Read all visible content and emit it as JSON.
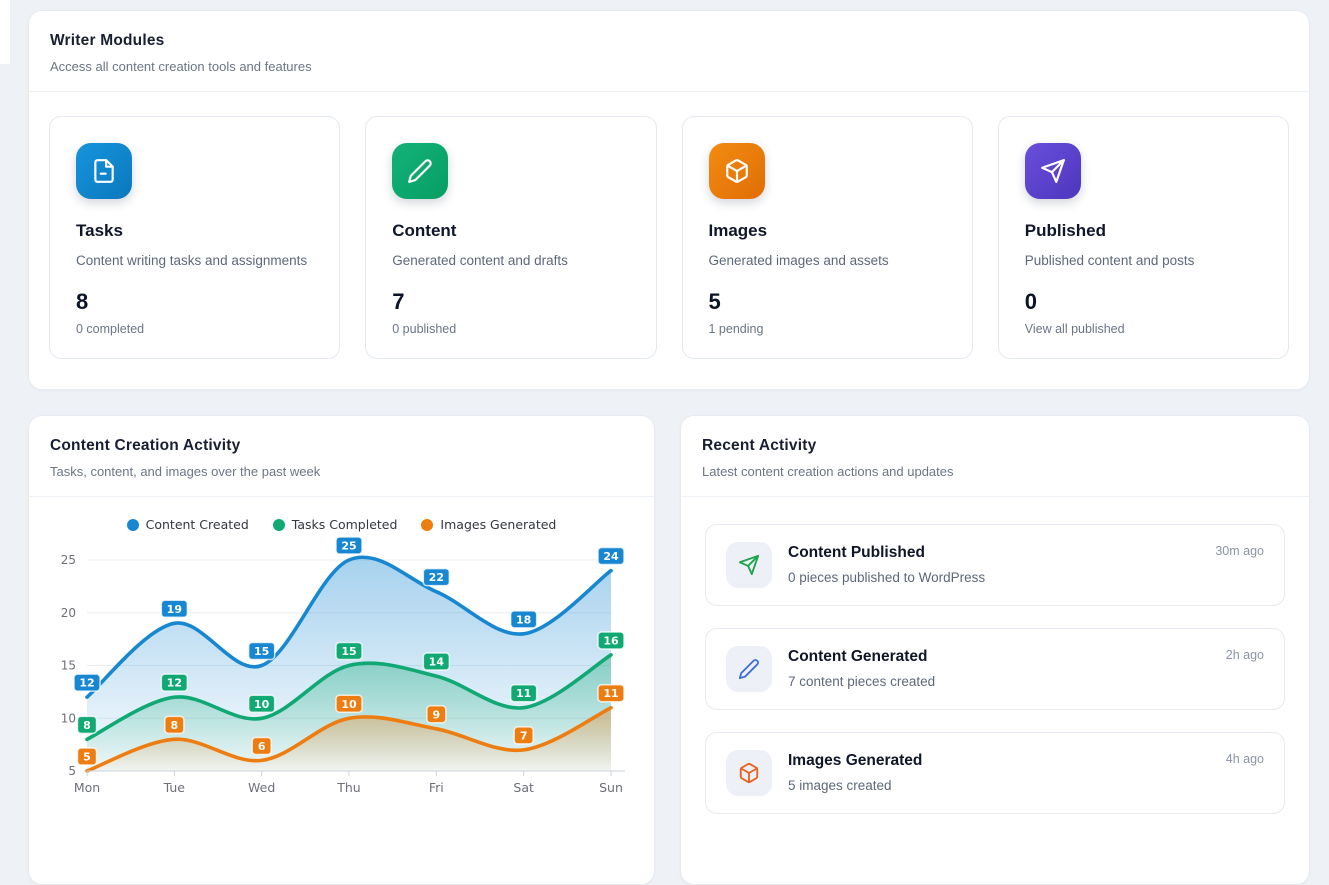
{
  "writer_modules": {
    "title": "Writer Modules",
    "subtitle": "Access all content creation tools and features",
    "cards": [
      {
        "title": "Tasks",
        "description": "Content writing tasks and assignments",
        "count": "8",
        "sub": "0 completed",
        "icon": "file",
        "color": "#0b77bd",
        "color_light": "#1695dd"
      },
      {
        "title": "Content",
        "description": "Generated content and drafts",
        "count": "7",
        "sub": "0 published",
        "icon": "pencil",
        "color": "#089e63",
        "color_light": "#12b27a"
      },
      {
        "title": "Images",
        "description": "Generated images and assets",
        "count": "5",
        "sub": "1 pending",
        "icon": "cube",
        "color": "#e06d04",
        "color_light": "#f28c12"
      },
      {
        "title": "Published",
        "description": "Published content and posts",
        "count": "0",
        "sub": "View all published",
        "icon": "send",
        "color": "#4e35bd",
        "color_light": "#6950dc"
      }
    ]
  },
  "activity_chart": {
    "title": "Content Creation Activity",
    "subtitle": "Tasks, content, and images over the past week"
  },
  "chart_data": {
    "type": "line",
    "x": [
      "Mon",
      "Tue",
      "Wed",
      "Thu",
      "Fri",
      "Sat",
      "Sun"
    ],
    "series": [
      {
        "name": "Content Created",
        "color": "#1787d2",
        "values": [
          12,
          19,
          15,
          25,
          22,
          18,
          24
        ]
      },
      {
        "name": "Tasks Completed",
        "color": "#10a873",
        "values": [
          8,
          12,
          10,
          15,
          14,
          11,
          16
        ]
      },
      {
        "name": "Images Generated",
        "color": "#ee7d11",
        "values": [
          5,
          8,
          6,
          10,
          9,
          7,
          11
        ]
      }
    ],
    "ylim": [
      5,
      25
    ],
    "yticks": [
      5,
      10,
      15,
      20,
      25
    ],
    "grid": true,
    "smooth": true,
    "area": true,
    "data_labels": true,
    "legend_position": "top",
    "axis_label_color": "#6E7079"
  },
  "recent_activity": {
    "title": "Recent Activity",
    "subtitle": "Latest content creation actions and updates",
    "items": [
      {
        "title": "Content Published",
        "description": "0 pieces published to WordPress",
        "time": "30m ago",
        "icon": "send",
        "color": "#1ca34b"
      },
      {
        "title": "Content Generated",
        "description": "7 content pieces created",
        "time": "2h ago",
        "icon": "pencil",
        "color": "#3e6fd9"
      },
      {
        "title": "Images Generated",
        "description": "5 images created",
        "time": "4h ago",
        "icon": "cube",
        "color": "#e8611c"
      }
    ]
  }
}
